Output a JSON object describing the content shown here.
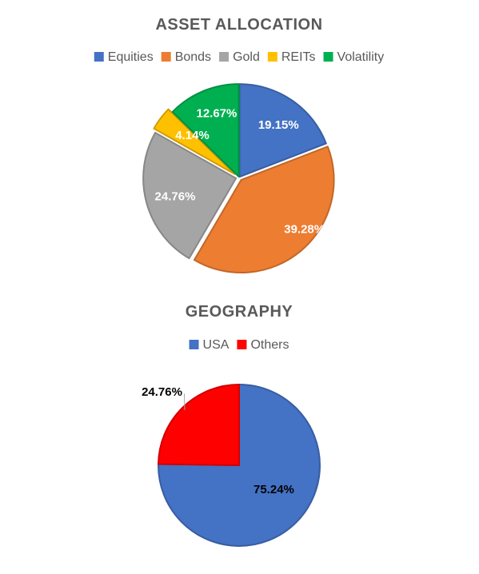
{
  "chart_data": [
    {
      "type": "pie",
      "title": "ASSET ALLOCATION",
      "categories": [
        "Equities",
        "Bonds",
        "Gold",
        "REITs",
        "Volatility"
      ],
      "values": [
        19.15,
        39.28,
        24.76,
        4.14,
        12.67
      ],
      "data_labels": [
        "19.15%",
        "39.28%",
        "24.76%",
        "4.14%",
        "12.67%"
      ],
      "colors": [
        "#4472C4",
        "#ED7D31",
        "#A5A5A5",
        "#FFC000",
        "#00B050"
      ],
      "start_angle_deg": 0,
      "direction": "clockwise",
      "legend_position": "top"
    },
    {
      "type": "pie",
      "title": "GEOGRAPHY",
      "categories": [
        "USA",
        "Others"
      ],
      "values": [
        75.24,
        24.76
      ],
      "data_labels": [
        "75.24%",
        "24.76%"
      ],
      "colors": [
        "#4472C4",
        "#FF0000"
      ],
      "start_angle_deg": 0,
      "direction": "clockwise",
      "legend_position": "top"
    }
  ]
}
